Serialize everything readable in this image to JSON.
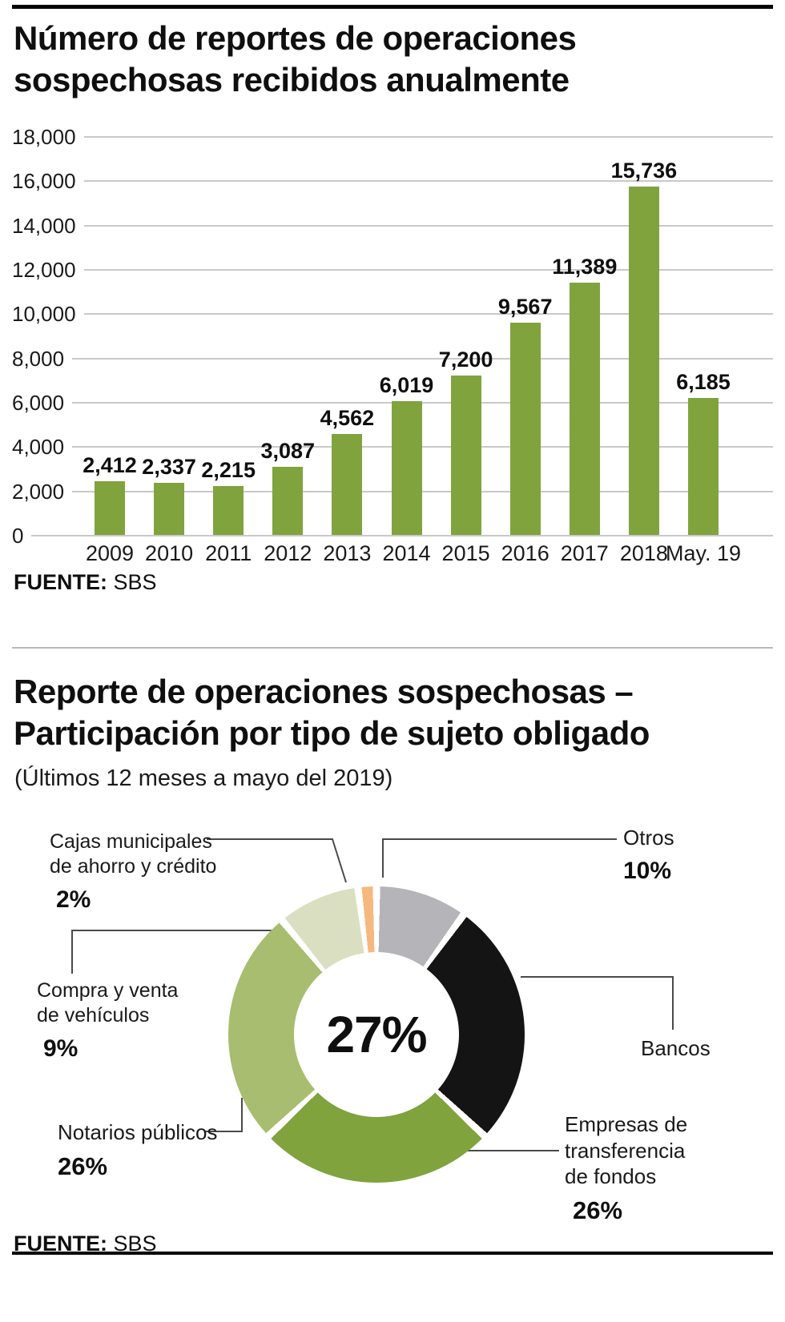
{
  "bar_section": {
    "title_line1": "Número de reportes de operaciones",
    "title_line2": "sospechosas recibidos anualmente",
    "source_label": "FUENTE:",
    "source_value": "SBS"
  },
  "donut_section": {
    "title_line1": "Reporte de operaciones sospechosas –",
    "title_line2": "Participación por tipo de sujeto obligado",
    "subtitle": "(Últimos 12 meses a mayo del 2019)",
    "center_label": "27%",
    "source_label": "FUENTE:",
    "source_value": "SBS",
    "callouts": {
      "cajas": {
        "line1": "Cajas municipales",
        "line2": "de ahorro y crédito",
        "pct": "2%"
      },
      "otros": {
        "line1": "Otros",
        "pct": "10%"
      },
      "compra": {
        "line1": "Compra y venta",
        "line2": "de vehículos",
        "pct": "9%"
      },
      "bancos": {
        "line1": "Bancos"
      },
      "notarios": {
        "line1": "Notarios públicos",
        "pct": "26%"
      },
      "empresas": {
        "line1": "Empresas de",
        "line2": "transferencia",
        "line3": "de fondos",
        "pct": "26%"
      }
    }
  },
  "chart_data": [
    {
      "type": "bar",
      "title": "Número de reportes de operaciones sospechosas recibidos anualmente",
      "categories": [
        "2009",
        "2010",
        "2011",
        "2012",
        "2013",
        "2014",
        "2015",
        "2016",
        "2017",
        "2018",
        "May. 19"
      ],
      "values": [
        2412,
        2337,
        2215,
        3087,
        4562,
        6019,
        7200,
        9567,
        11389,
        15736,
        6185
      ],
      "value_labels": [
        "2,412",
        "2,337",
        "2,215",
        "3,087",
        "4,562",
        "6,019",
        "7,200",
        "9,567",
        "11,389",
        "15,736",
        "6,185"
      ],
      "xlabel": "",
      "ylabel": "",
      "ylim": [
        0,
        18000
      ],
      "ytick_step": 2000,
      "ytick_labels": [
        "18,000",
        "16,000",
        "14,000",
        "12,000",
        "10,000",
        "8,000",
        "6,000",
        "4,000",
        "2,000",
        "0"
      ],
      "grid": true,
      "bar_color": "#80a33e",
      "source": "FUENTE: SBS"
    },
    {
      "type": "pie",
      "subtype": "donut",
      "title": "Reporte de operaciones sospechosas – Participación por tipo de sujeto obligado",
      "subtitle": "(Últimos 12 meses a mayo del 2019)",
      "center_label": "27%",
      "slices": [
        {
          "label": "Otros",
          "pct": 10,
          "color": "#b5b4b8"
        },
        {
          "label": "Bancos",
          "pct": 27,
          "color": "#141414"
        },
        {
          "label": "Empresas de transferencia de fondos",
          "pct": 26,
          "color": "#80a33e"
        },
        {
          "label": "Notarios públicos",
          "pct": 26,
          "color": "#a8bd6f"
        },
        {
          "label": "Compra y venta de vehículos",
          "pct": 9,
          "color": "#dbdfc1"
        },
        {
          "label": "Cajas municipales de ahorro y crédito",
          "pct": 2,
          "color": "#f6b87f"
        }
      ],
      "source": "FUENTE: SBS"
    }
  ]
}
